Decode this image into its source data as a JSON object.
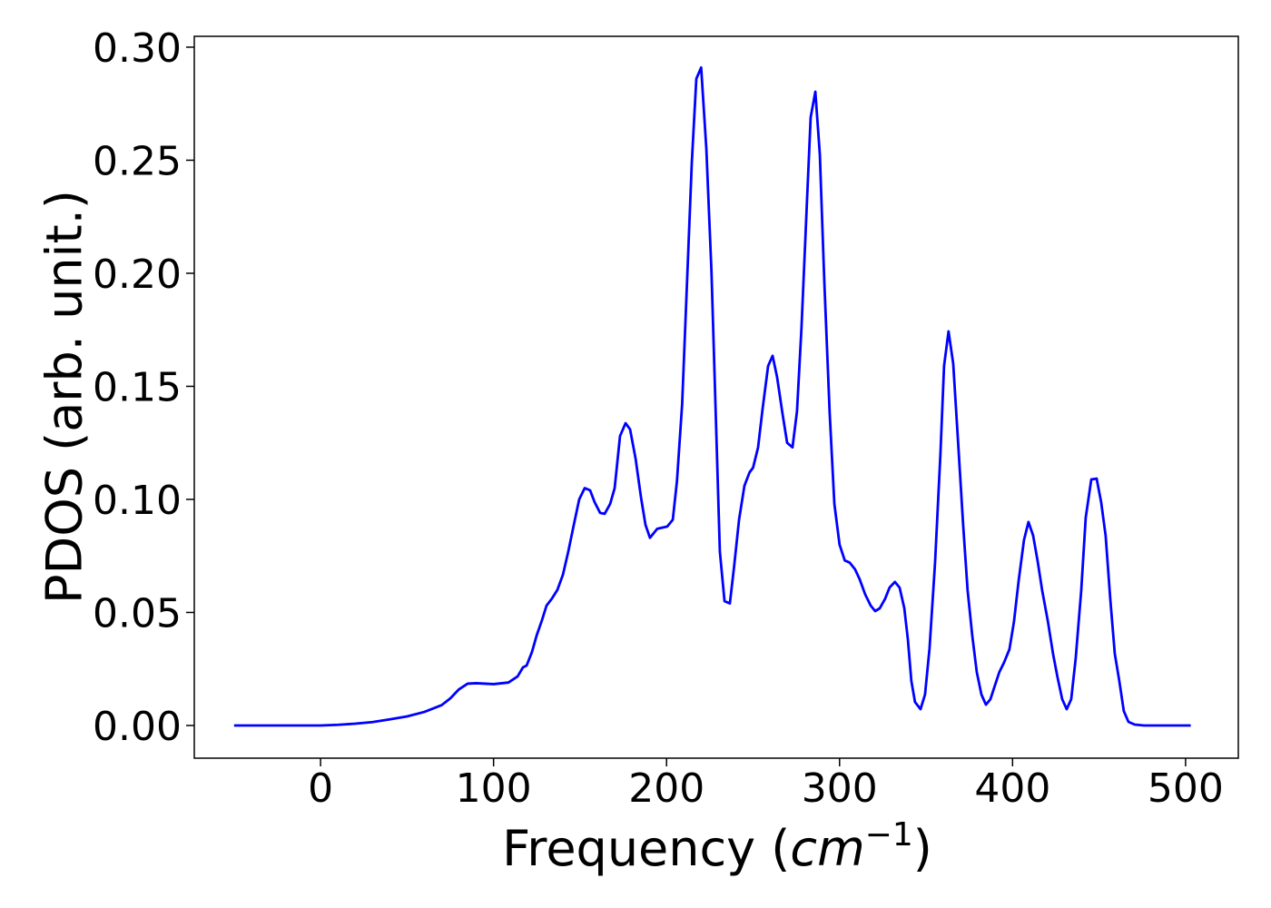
{
  "chart_data": {
    "type": "line",
    "xlabel": [
      "Frequency (",
      "cm",
      "−1",
      ")"
    ],
    "ylabel": "PDOS (arb. unit.)",
    "x": [
      -50,
      0,
      10,
      20,
      30,
      40,
      50,
      60,
      70,
      75,
      80,
      85,
      90,
      100,
      108.6,
      113.9,
      117,
      119.1,
      122.2,
      124.9,
      128,
      130.6,
      133.8,
      136.9,
      140.1,
      143.2,
      146.4,
      149.5,
      152.7,
      155.8,
      158.4,
      161.6,
      164.2,
      167.4,
      170,
      173.1,
      176.3,
      178.9,
      182.1,
      185.2,
      187.8,
      190.4,
      194.6,
      200.4,
      203.6,
      206,
      209,
      214.6,
      217.2,
      220,
      223,
      226,
      230.8,
      233.5,
      236.6,
      239,
      241.9,
      245,
      248,
      250,
      252.9,
      255.5,
      258.7,
      261.3,
      263.9,
      267,
      269.7,
      272.8,
      275.4,
      278,
      281.2,
      283.3,
      286,
      288.6,
      291.2,
      294.3,
      297,
      300,
      303,
      305.9,
      309,
      311.6,
      314.8,
      318,
      320.6,
      323.2,
      326.3,
      328.9,
      332,
      334.7,
      337.4,
      339.5,
      341.5,
      343.6,
      346.8,
      349.4,
      352,
      355.2,
      358.3,
      360.4,
      363,
      365.7,
      368.3,
      371.5,
      374,
      376.7,
      379.3,
      382,
      384.6,
      387.2,
      389.8,
      392.4,
      395,
      398.2,
      400.8,
      403.5,
      406.6,
      409.2,
      411.9,
      414.5,
      417.1,
      420.3,
      423.4,
      426,
      428.7,
      431.3,
      433.9,
      436.5,
      439.7,
      442.3,
      445.5,
      448.6,
      451.2,
      453.8,
      456.5,
      459.1,
      461.7,
      464.3,
      467,
      470.6,
      476,
      503
    ],
    "series": [
      {
        "color": "#0000ff",
        "values": [
          0,
          0,
          0.0003,
          0.0008,
          0.0015,
          0.0027,
          0.004,
          0.006,
          0.009,
          0.012,
          0.016,
          0.0185,
          0.0187,
          0.0183,
          0.019,
          0.0217,
          0.0257,
          0.0265,
          0.0325,
          0.0398,
          0.0466,
          0.053,
          0.0562,
          0.06,
          0.0667,
          0.077,
          0.0888,
          0.1,
          0.105,
          0.104,
          0.0988,
          0.094,
          0.0936,
          0.098,
          0.105,
          0.128,
          0.1337,
          0.131,
          0.118,
          0.101,
          0.0888,
          0.083,
          0.087,
          0.088,
          0.091,
          0.108,
          0.142,
          0.249,
          0.286,
          0.291,
          0.255,
          0.2,
          0.077,
          0.055,
          0.054,
          0.07,
          0.091,
          0.106,
          0.112,
          0.114,
          0.123,
          0.14,
          0.159,
          0.1635,
          0.154,
          0.138,
          0.125,
          0.123,
          0.139,
          0.176,
          0.2325,
          0.269,
          0.2803,
          0.2526,
          0.196,
          0.138,
          0.098,
          0.08,
          0.073,
          0.072,
          0.069,
          0.0647,
          0.058,
          0.053,
          0.0506,
          0.0518,
          0.056,
          0.061,
          0.0635,
          0.061,
          0.052,
          0.038,
          0.0197,
          0.0104,
          0.0072,
          0.0137,
          0.034,
          0.072,
          0.12,
          0.159,
          0.1743,
          0.16,
          0.128,
          0.088,
          0.06,
          0.0398,
          0.0237,
          0.0137,
          0.0092,
          0.0116,
          0.0177,
          0.0237,
          0.0277,
          0.0337,
          0.0458,
          0.0639,
          0.082,
          0.09,
          0.084,
          0.0727,
          0.0598,
          0.0466,
          0.0317,
          0.0213,
          0.0116,
          0.0072,
          0.0116,
          0.0297,
          0.0598,
          0.092,
          0.1088,
          0.1092,
          0.0988,
          0.084,
          0.0558,
          0.0317,
          0.0197,
          0.0064,
          0.0016,
          0.0004,
          0,
          0
        ]
      }
    ],
    "xlim": [
      -73,
      530.5
    ],
    "ylim": [
      -0.01446,
      0.3048
    ],
    "xticks": [
      0,
      100,
      200,
      300,
      400,
      500
    ],
    "yticks": [
      {
        "value": 0,
        "label": "0.00"
      },
      {
        "value": 0.05,
        "label": "0.05"
      },
      {
        "value": 0.1,
        "label": "0.10"
      },
      {
        "value": 0.15,
        "label": "0.15"
      },
      {
        "value": 0.2,
        "label": "0.20"
      },
      {
        "value": 0.25,
        "label": "0.25"
      },
      {
        "value": 0.3,
        "label": "0.30"
      }
    ]
  }
}
